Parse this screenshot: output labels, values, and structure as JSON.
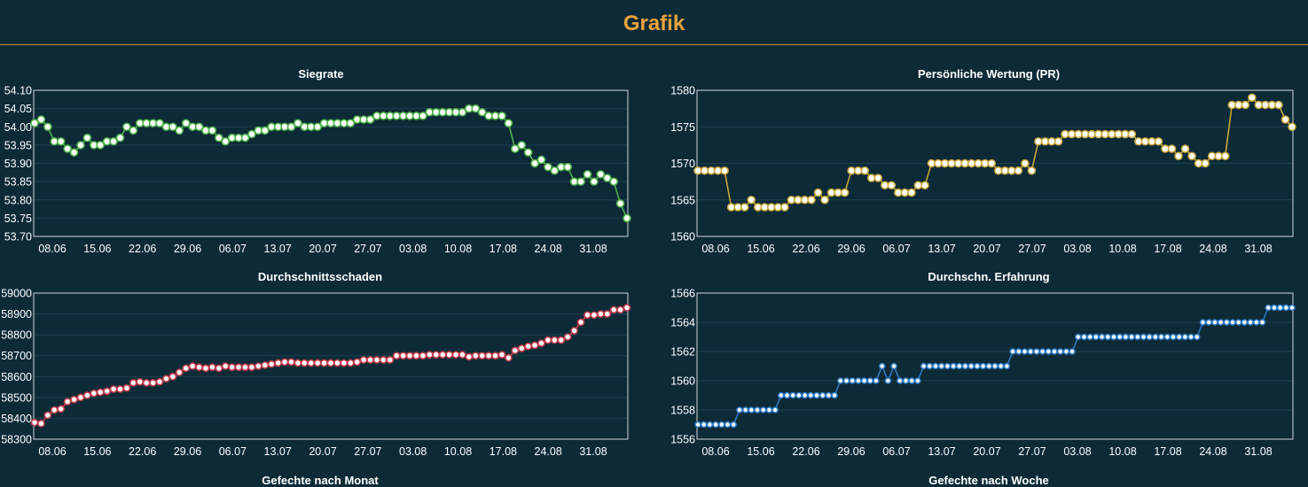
{
  "header": {
    "title": "Grafik"
  },
  "sections": {
    "bottom_left_title": "Gefechte nach Monat",
    "bottom_right_title": "Gefechte nach Woche"
  },
  "colors": {
    "background": "#0d2a37",
    "accent": "#e8a33c",
    "green": "#4fb24b",
    "gold": "#c9a83c",
    "red": "#c4404e",
    "blue": "#2f7ac4"
  },
  "chart_data": [
    {
      "type": "line",
      "title": "Siegrate",
      "xlabel": "",
      "ylabel": "",
      "color": "#4fb24b",
      "grid": true,
      "ylim": [
        53.7,
        54.1
      ],
      "yticks": [
        "54.10",
        "54.05",
        "54.00",
        "53.95",
        "53.90",
        "53.85",
        "53.80",
        "53.75",
        "53.70"
      ],
      "xticks": [
        "08.06",
        "15.06",
        "22.06",
        "29.06",
        "06.07",
        "13.07",
        "20.07",
        "27.07",
        "03.08",
        "10.08",
        "17.08",
        "24.08",
        "31.08"
      ],
      "series": [
        {
          "values": [
            54.01,
            54.02,
            54.0,
            53.96,
            53.96,
            53.94,
            53.93,
            53.95,
            53.97,
            53.95,
            53.95,
            53.96,
            53.96,
            53.97,
            54.0,
            53.99,
            54.01,
            54.01,
            54.01,
            54.01,
            54.0,
            54.0,
            53.99,
            54.01,
            54.0,
            54.0,
            53.99,
            53.99,
            53.97,
            53.96,
            53.97,
            53.97,
            53.97,
            53.98,
            53.99,
            53.99,
            54.0,
            54.0,
            54.0,
            54.0,
            54.01,
            54.0,
            54.0,
            54.0,
            54.01,
            54.01,
            54.01,
            54.01,
            54.01,
            54.02,
            54.02,
            54.02,
            54.03,
            54.03,
            54.03,
            54.03,
            54.03,
            54.03,
            54.03,
            54.03,
            54.04,
            54.04,
            54.04,
            54.04,
            54.04,
            54.04,
            54.05,
            54.05,
            54.04,
            54.03,
            54.03,
            54.03,
            54.01,
            53.94,
            53.95,
            53.93,
            53.9,
            53.91,
            53.89,
            53.88,
            53.89,
            53.89,
            53.85,
            53.85,
            53.87,
            53.85,
            53.87,
            53.86,
            53.85,
            53.79,
            53.75
          ]
        }
      ]
    },
    {
      "type": "line",
      "title": "Persönliche Wertung (PR)",
      "xlabel": "",
      "ylabel": "",
      "color": "#c9a83c",
      "grid": true,
      "ylim": [
        1560,
        1580
      ],
      "yticks": [
        "1580",
        "1575",
        "1570",
        "1565",
        "1560"
      ],
      "xticks": [
        "08.06",
        "15.06",
        "22.06",
        "29.06",
        "06.07",
        "13.07",
        "20.07",
        "27.07",
        "03.08",
        "10.08",
        "17.08",
        "24.08",
        "31.08"
      ],
      "series": [
        {
          "values": [
            1569,
            1569,
            1569,
            1569,
            1569,
            1564,
            1564,
            1564,
            1565,
            1564,
            1564,
            1564,
            1564,
            1564,
            1565,
            1565,
            1565,
            1565,
            1566,
            1565,
            1566,
            1566,
            1566,
            1569,
            1569,
            1569,
            1568,
            1568,
            1567,
            1567,
            1566,
            1566,
            1566,
            1567,
            1567,
            1570,
            1570,
            1570,
            1570,
            1570,
            1570,
            1570,
            1570,
            1570,
            1570,
            1569,
            1569,
            1569,
            1569,
            1570,
            1569,
            1573,
            1573,
            1573,
            1573,
            1574,
            1574,
            1574,
            1574,
            1574,
            1574,
            1574,
            1574,
            1574,
            1574,
            1574,
            1573,
            1573,
            1573,
            1573,
            1572,
            1572,
            1571,
            1572,
            1571,
            1570,
            1570,
            1571,
            1571,
            1571,
            1578,
            1578,
            1578,
            1579,
            1578,
            1578,
            1578,
            1578,
            1576,
            1575
          ]
        }
      ]
    },
    {
      "type": "line",
      "title": "Durchschnittsschaden",
      "xlabel": "",
      "ylabel": "",
      "color": "#c4404e",
      "grid": true,
      "ylim": [
        58300,
        59000
      ],
      "yticks": [
        "59000",
        "58900",
        "58800",
        "58700",
        "58600",
        "58500",
        "58400",
        "58300"
      ],
      "xticks": [
        "08.06",
        "15.06",
        "22.06",
        "29.06",
        "06.07",
        "13.07",
        "20.07",
        "27.07",
        "03.08",
        "10.08",
        "17.08",
        "24.08",
        "31.08"
      ],
      "series": [
        {
          "values": [
            58380,
            58375,
            58415,
            58440,
            58445,
            58480,
            58490,
            58500,
            58510,
            58520,
            58525,
            58530,
            58540,
            58540,
            58545,
            58570,
            58575,
            58570,
            58570,
            58575,
            58590,
            58600,
            58620,
            58640,
            58650,
            58645,
            58640,
            58645,
            58640,
            58650,
            58645,
            58645,
            58645,
            58645,
            58650,
            58655,
            58660,
            58665,
            58670,
            58670,
            58665,
            58665,
            58665,
            58665,
            58665,
            58665,
            58665,
            58665,
            58665,
            58670,
            58680,
            58680,
            58680,
            58680,
            58680,
            58700,
            58700,
            58700,
            58700,
            58700,
            58705,
            58705,
            58705,
            58705,
            58705,
            58705,
            58695,
            58700,
            58700,
            58700,
            58700,
            58705,
            58690,
            58725,
            58735,
            58745,
            58750,
            58760,
            58775,
            58775,
            58775,
            58790,
            58820,
            58860,
            58895,
            58895,
            58900,
            58900,
            58920,
            58920,
            58930
          ]
        }
      ]
    },
    {
      "type": "line",
      "title": "Durchschn. Erfahrung",
      "xlabel": "",
      "ylabel": "",
      "color": "#2f7ac4",
      "grid": true,
      "ylim": [
        1556,
        1566
      ],
      "yticks": [
        "1566",
        "1564",
        "1562",
        "1560",
        "1558",
        "1556"
      ],
      "xticks": [
        "08.06",
        "15.06",
        "22.06",
        "29.06",
        "06.07",
        "13.07",
        "20.07",
        "27.07",
        "03.08",
        "10.08",
        "17.08",
        "24.08",
        "31.08"
      ],
      "series": [
        {
          "values": [
            1557,
            1557,
            1557,
            1557,
            1557,
            1557,
            1557,
            1558,
            1558,
            1558,
            1558,
            1558,
            1558,
            1558,
            1559,
            1559,
            1559,
            1559,
            1559,
            1559,
            1559,
            1559,
            1559,
            1559,
            1560,
            1560,
            1560,
            1560,
            1560,
            1560,
            1560,
            1561,
            1560,
            1561,
            1560,
            1560,
            1560,
            1560,
            1561,
            1561,
            1561,
            1561,
            1561,
            1561,
            1561,
            1561,
            1561,
            1561,
            1561,
            1561,
            1561,
            1561,
            1561,
            1562,
            1562,
            1562,
            1562,
            1562,
            1562,
            1562,
            1562,
            1562,
            1562,
            1562,
            1563,
            1563,
            1563,
            1563,
            1563,
            1563,
            1563,
            1563,
            1563,
            1563,
            1563,
            1563,
            1563,
            1563,
            1563,
            1563,
            1563,
            1563,
            1563,
            1563,
            1563,
            1564,
            1564,
            1564,
            1564,
            1564,
            1564,
            1564,
            1564,
            1564,
            1564,
            1564,
            1565,
            1565,
            1565,
            1565,
            1565
          ]
        }
      ]
    }
  ]
}
